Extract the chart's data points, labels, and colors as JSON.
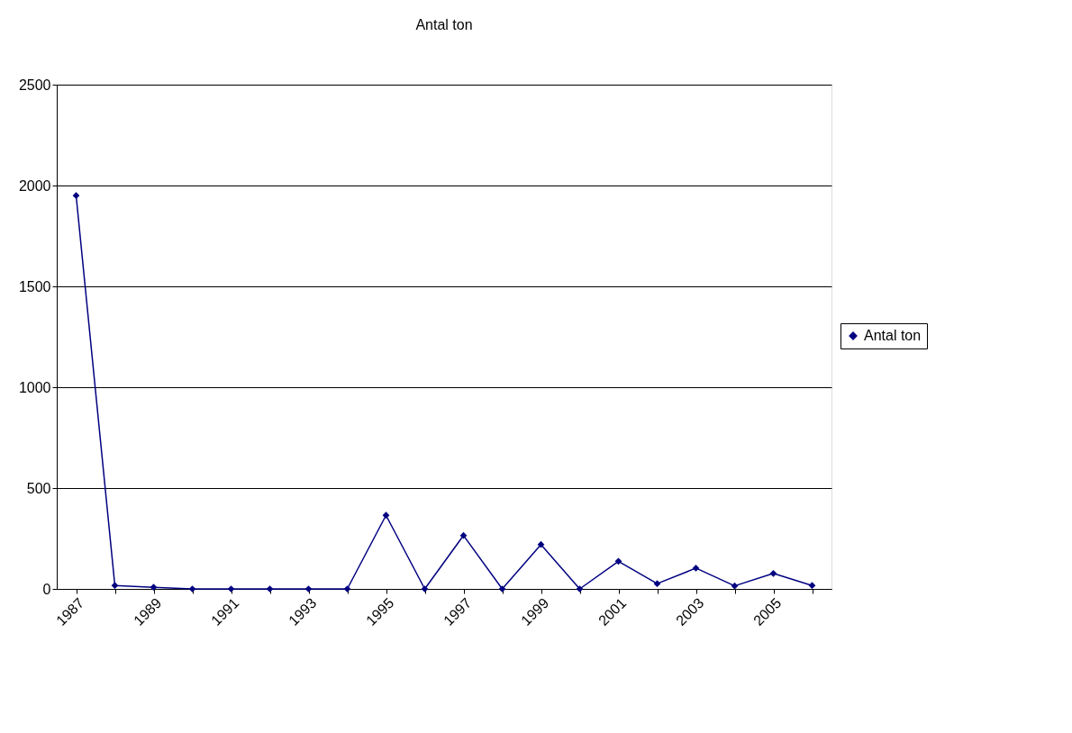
{
  "chart_data": {
    "type": "line",
    "title": "Antal ton",
    "categories": [
      "1987",
      null,
      "1989",
      null,
      "1991",
      null,
      "1993",
      null,
      "1995",
      null,
      "1997",
      null,
      "1999",
      null,
      "2001",
      null,
      "2003",
      null,
      "2005",
      null
    ],
    "series": [
      {
        "name": "Antal ton",
        "color": "#000080",
        "values": [
          1950,
          17,
          8,
          0,
          0,
          0,
          0,
          0,
          365,
          0,
          265,
          0,
          220,
          0,
          137,
          26,
          103,
          15,
          77,
          17
        ]
      }
    ],
    "ylim": [
      0,
      2500
    ],
    "yticks": [
      0,
      500,
      1000,
      1500,
      2000,
      2500
    ],
    "grid": "y",
    "legend": "right",
    "marker": "diamond",
    "line_style": "solid"
  }
}
